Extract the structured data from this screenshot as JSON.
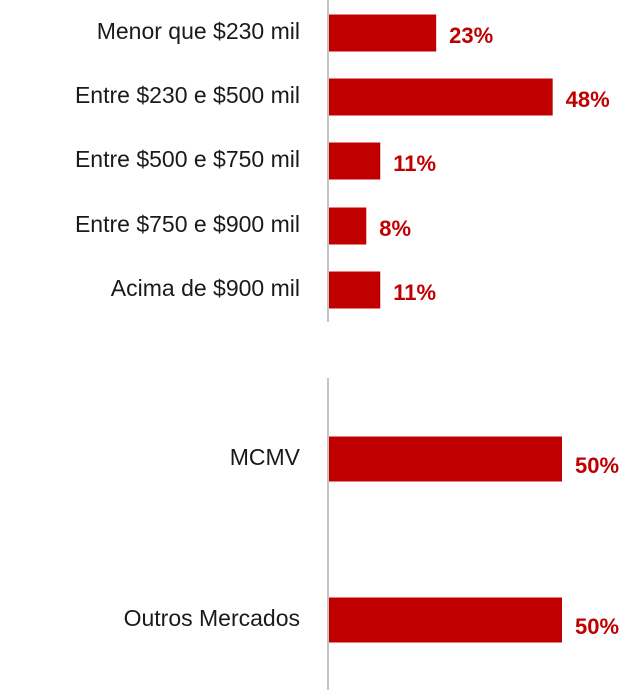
{
  "chart_data": [
    {
      "type": "barh",
      "categories": [
        "Menor que $230 mil",
        "Entre $230 e $500 mil",
        "Entre $500 e $750 mil",
        "Entre $750 e $900 mil",
        "Acima de $900 mil"
      ],
      "values": [
        23,
        48,
        11,
        8,
        11
      ],
      "value_labels": [
        "23%",
        "48%",
        "11%",
        "8%",
        "11%"
      ],
      "color": "#c00000"
    },
    {
      "type": "barh",
      "categories": [
        "MCMV",
        "Outros Mercados"
      ],
      "values": [
        50,
        50
      ],
      "value_labels": [
        "50%",
        "50%"
      ],
      "color": "#c00000"
    }
  ]
}
